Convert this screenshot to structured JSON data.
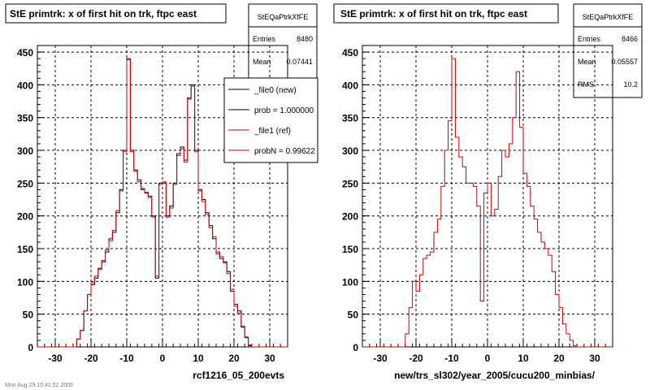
{
  "chart_data": [
    {
      "type": "line",
      "title": "StE primtrk: x of first hit on trk, ftpc east",
      "xlabel": "rcf1216_05_200evts",
      "ylabel": "",
      "xlim": [
        -35,
        35
      ],
      "ylim": [
        0,
        460
      ],
      "x_ticks": [
        -30,
        -20,
        -10,
        0,
        10,
        20,
        30
      ],
      "y_ticks": [
        0,
        50,
        100,
        150,
        200,
        250,
        300,
        350,
        400,
        450
      ],
      "grid": true,
      "stats": {
        "name": "StEQaPtrkXfFE",
        "rows": [
          {
            "label": "Entries",
            "value": "8480"
          },
          {
            "label": "Mean",
            "value": "0.07441"
          }
        ]
      },
      "legend": {
        "placement": "top-right",
        "entries": [
          {
            "label": "_file0 (new)",
            "color": "#000000"
          },
          {
            "label": "prob = 1.000000",
            "color": "#000000"
          },
          {
            "label": "_file1 (ref)",
            "color": "#cc0000"
          },
          {
            "label": "probN = 0.99622",
            "color": "#cc0000"
          }
        ]
      },
      "bin_width": 1,
      "bin_edges_range": [
        -35,
        35
      ],
      "series": [
        {
          "name": "_file0 (new)",
          "color": "#000000",
          "values": [
            0,
            0,
            0,
            0,
            0,
            0,
            0,
            0,
            0,
            0,
            0,
            12,
            25,
            55,
            80,
            95,
            105,
            120,
            130,
            145,
            165,
            175,
            205,
            240,
            300,
            440,
            300,
            270,
            255,
            240,
            235,
            230,
            200,
            105,
            250,
            250,
            200,
            215,
            250,
            295,
            305,
            285,
            380,
            400,
            300,
            240,
            225,
            205,
            185,
            165,
            145,
            135,
            130,
            115,
            85,
            65,
            55,
            30,
            15,
            2,
            0,
            0,
            0,
            0,
            0,
            0,
            0,
            0,
            0,
            0
          ]
        },
        {
          "name": "_file1 (ref)",
          "color": "#cc0000",
          "values": [
            0,
            0,
            0,
            0,
            0,
            0,
            0,
            0,
            0,
            0,
            0,
            12,
            25,
            55,
            80,
            98,
            108,
            118,
            132,
            148,
            162,
            178,
            208,
            238,
            298,
            438,
            298,
            268,
            252,
            242,
            236,
            228,
            198,
            108,
            248,
            252,
            198,
            212,
            248,
            292,
            302,
            282,
            378,
            398,
            298,
            238,
            222,
            202,
            182,
            168,
            142,
            138,
            128,
            112,
            88,
            62,
            52,
            32,
            14,
            3,
            0,
            0,
            0,
            0,
            0,
            0,
            0,
            0,
            0,
            0
          ]
        }
      ]
    },
    {
      "type": "line",
      "title": "StE primtrk: x of first hit on trk, ftpc east",
      "xlabel": "new/trs_sl302/year_2005/cucu200_minbias/",
      "ylabel": "",
      "xlim": [
        -35,
        35
      ],
      "ylim": [
        0,
        460
      ],
      "x_ticks": [
        -30,
        -20,
        -10,
        0,
        10,
        20,
        30
      ],
      "y_ticks": [
        0,
        50,
        100,
        150,
        200,
        250,
        300,
        350,
        400,
        450
      ],
      "grid": true,
      "stats": {
        "name": "StEQaPtrkXfFE",
        "rows": [
          {
            "label": "Entries",
            "value": "8466"
          },
          {
            "label": "Mean",
            "value": "0.05557"
          },
          {
            "label": "RMS",
            "value": "10.2"
          }
        ]
      },
      "bin_width": 1,
      "bin_edges_range": [
        -35,
        35
      ],
      "series": [
        {
          "name": "",
          "color": "#cc0000",
          "values": [
            0,
            0,
            0,
            0,
            0,
            0,
            0,
            0,
            0,
            0,
            0,
            0,
            20,
            60,
            100,
            85,
            110,
            135,
            140,
            145,
            175,
            195,
            245,
            300,
            345,
            440,
            320,
            290,
            275,
            250,
            250,
            245,
            215,
            70,
            235,
            250,
            200,
            210,
            260,
            300,
            290,
            310,
            350,
            420,
            335,
            265,
            245,
            215,
            195,
            175,
            160,
            150,
            140,
            115,
            80,
            60,
            35,
            20,
            10,
            2,
            0,
            0,
            0,
            0,
            0,
            0,
            0,
            0,
            0,
            0
          ]
        }
      ]
    }
  ],
  "footer": "Mon Aug 29 10:41:52 2005"
}
